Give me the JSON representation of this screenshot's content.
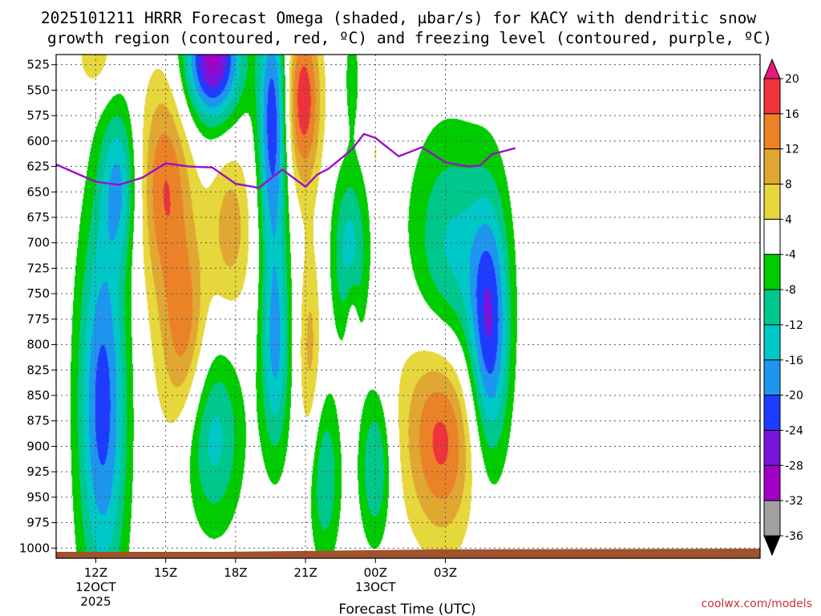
{
  "chart_data": {
    "type": "heatmap",
    "title_line1": "2025101211 HRRR Forecast Omega (shaded, µbar/s) for KACY with dendritic snow",
    "title_line2": "growth region (contoured, red, ºC) and freezing level (contoured, purple, ºC)",
    "xlabel": "Forecast Time (UTC)",
    "credit": "coolwx.com/models",
    "y_axis": {
      "units": "hPa",
      "range": [
        515,
        1010
      ],
      "ticks": [
        "525",
        "550",
        "575",
        "600",
        "625",
        "650",
        "675",
        "700",
        "725",
        "750",
        "775",
        "800",
        "825",
        "850",
        "875",
        "900",
        "925",
        "950",
        "975",
        "1000"
      ]
    },
    "x_axis": {
      "range_hours": [
        -1.7,
        28.5
      ],
      "ticks": [
        {
          "hour": 0,
          "label": "12Z",
          "sub1": "12OCT",
          "sub2": "2025"
        },
        {
          "hour": 3,
          "label": "15Z",
          "sub1": "",
          "sub2": ""
        },
        {
          "hour": 6,
          "label": "18Z",
          "sub1": "",
          "sub2": ""
        },
        {
          "hour": 9,
          "label": "21Z",
          "sub1": "",
          "sub2": ""
        },
        {
          "hour": 12,
          "label": "00Z",
          "sub1": "13OCT",
          "sub2": ""
        },
        {
          "hour": 15,
          "label": "03Z",
          "sub1": "",
          "sub2": ""
        }
      ]
    },
    "colorbar": {
      "labels": [
        "20",
        "16",
        "12",
        "8",
        "4",
        "-4",
        "-8",
        "-12",
        "-16",
        "-20",
        "-24",
        "-28",
        "-32",
        "-36"
      ],
      "bins": [
        {
          "lo": 20,
          "hi": 24,
          "color": "#e8197f"
        },
        {
          "lo": 16,
          "hi": 20,
          "color": "#f0323c"
        },
        {
          "lo": 12,
          "hi": 16,
          "color": "#ec8228"
        },
        {
          "lo": 8,
          "hi": 12,
          "color": "#e0a832"
        },
        {
          "lo": 4,
          "hi": 8,
          "color": "#e6d83c"
        },
        {
          "lo": -4,
          "hi": 4,
          "color": "#ffffff"
        },
        {
          "lo": -8,
          "hi": -4,
          "color": "#00cc00"
        },
        {
          "lo": -12,
          "hi": -8,
          "color": "#00c88c"
        },
        {
          "lo": -16,
          "hi": -12,
          "color": "#00c8c8"
        },
        {
          "lo": -20,
          "hi": -16,
          "color": "#1e96f0"
        },
        {
          "lo": -24,
          "hi": -20,
          "color": "#1e3cff"
        },
        {
          "lo": -28,
          "hi": -24,
          "color": "#7814dc"
        },
        {
          "lo": -32,
          "hi": -28,
          "color": "#a000c8"
        },
        {
          "lo": -36,
          "hi": -32,
          "color": "#a0a0a0"
        },
        {
          "lo": -40,
          "hi": -36,
          "color": "#000000"
        }
      ]
    },
    "omega_features": [
      {
        "t": 0.0,
        "p": 515,
        "st": 0.6,
        "sp": 30,
        "amp": 7.5
      },
      {
        "t": 0.3,
        "p": 860,
        "st": 0.75,
        "sp": 135,
        "amp": -22
      },
      {
        "t": 1.0,
        "p": 640,
        "st": 0.55,
        "sp": 55,
        "amp": -14
      },
      {
        "t": 5.0,
        "p": 520,
        "st": 0.9,
        "sp": 45,
        "amp": -30
      },
      {
        "t": 2.9,
        "p": 640,
        "st": 0.75,
        "sp": 70,
        "amp": 11
      },
      {
        "t": 3.9,
        "p": 790,
        "st": 0.65,
        "sp": 65,
        "amp": 10.5
      },
      {
        "t": 3.3,
        "p": 720,
        "st": 0.9,
        "sp": 150,
        "amp": 6
      },
      {
        "t": 5.8,
        "p": 685,
        "st": 0.65,
        "sp": 60,
        "amp": 10
      },
      {
        "t": 5.0,
        "p": 890,
        "st": 0.9,
        "sp": 65,
        "amp": -14
      },
      {
        "t": 7.6,
        "p": 580,
        "st": 0.45,
        "sp": 85,
        "amp": -23
      },
      {
        "t": 7.7,
        "p": 800,
        "st": 0.45,
        "sp": 80,
        "amp": -17
      },
      {
        "t": 8.9,
        "p": 560,
        "st": 0.55,
        "sp": 60,
        "amp": 19
      },
      {
        "t": 9.2,
        "p": 810,
        "st": 0.35,
        "sp": 80,
        "amp": 9.5
      },
      {
        "t": 10.9,
        "p": 710,
        "st": 0.55,
        "sp": 60,
        "amp": -14
      },
      {
        "t": 9.8,
        "p": 930,
        "st": 0.5,
        "sp": 60,
        "amp": -12
      },
      {
        "t": 12.0,
        "p": 920,
        "st": 0.5,
        "sp": 55,
        "amp": -13
      },
      {
        "t": 15.0,
        "p": 890,
        "st": 1.0,
        "sp": 70,
        "amp": 15
      },
      {
        "t": 14.0,
        "p": 850,
        "st": 1.2,
        "sp": 90,
        "amp": 6
      },
      {
        "t": 15.2,
        "p": 720,
        "st": 1.3,
        "sp": 90,
        "amp": -14
      },
      {
        "t": 16.9,
        "p": 790,
        "st": 0.6,
        "sp": 90,
        "amp": -21
      },
      {
        "t": 11.0,
        "p": 775,
        "st": 0.2,
        "sp": 35,
        "amp": 6
      },
      {
        "t": 12.0,
        "p": 615,
        "st": 0.12,
        "sp": 25,
        "amp": 5
      },
      {
        "t": 11.0,
        "p": 535,
        "st": 0.25,
        "sp": 40,
        "amp": -6
      }
    ],
    "freezing_level": {
      "color": "#9b10c8",
      "points": [
        {
          "t": -1.7,
          "p": 623
        },
        {
          "t": 0.0,
          "p": 640
        },
        {
          "t": 1.0,
          "p": 643
        },
        {
          "t": 2.0,
          "p": 636
        },
        {
          "t": 3.0,
          "p": 622
        },
        {
          "t": 4.0,
          "p": 625
        },
        {
          "t": 5.0,
          "p": 626
        },
        {
          "t": 6.0,
          "p": 642
        },
        {
          "t": 7.0,
          "p": 646
        },
        {
          "t": 8.0,
          "p": 628
        },
        {
          "t": 9.0,
          "p": 645
        },
        {
          "t": 9.5,
          "p": 633
        },
        {
          "t": 10.0,
          "p": 627
        },
        {
          "t": 11.0,
          "p": 608
        },
        {
          "t": 11.5,
          "p": 593
        },
        {
          "t": 12.0,
          "p": 597
        },
        {
          "t": 13.0,
          "p": 615
        },
        {
          "t": 14.0,
          "p": 606
        },
        {
          "t": 15.0,
          "p": 621
        },
        {
          "t": 16.0,
          "p": 625
        },
        {
          "t": 16.5,
          "p": 624
        },
        {
          "t": 17.0,
          "p": 613
        },
        {
          "t": 18.0,
          "p": 607
        }
      ]
    },
    "terrain": {
      "color": "#a0522d"
    }
  }
}
